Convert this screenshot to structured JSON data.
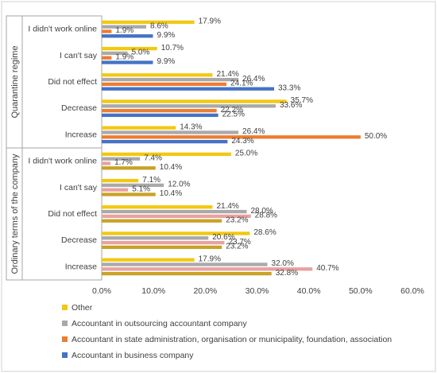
{
  "chart_data": {
    "type": "bar",
    "orientation": "horizontal",
    "groups": [
      {
        "name": "Quarantine regime",
        "categories": [
          {
            "label": "I didn't work online",
            "values": [
              17.9,
              8.6,
              1.9,
              9.9
            ]
          },
          {
            "label": "I can't say",
            "values": [
              10.7,
              5.0,
              1.9,
              9.9
            ]
          },
          {
            "label": "Did not effect",
            "values": [
              21.4,
              26.4,
              24.1,
              33.3
            ]
          },
          {
            "label": "Decrease",
            "values": [
              35.7,
              33.6,
              22.2,
              22.5
            ]
          },
          {
            "label": "Increase",
            "values": [
              14.3,
              26.4,
              50.0,
              24.3
            ]
          }
        ]
      },
      {
        "name": "Ordinary terms of the company",
        "categories": [
          {
            "label": "I didn't work online",
            "values": [
              25.0,
              7.4,
              1.7,
              10.4
            ]
          },
          {
            "label": "I can't say",
            "values": [
              7.1,
              12.0,
              5.1,
              10.4
            ]
          },
          {
            "label": "Did not effect",
            "values": [
              21.4,
              28.0,
              28.8,
              23.2
            ]
          },
          {
            "label": "Decrease",
            "values": [
              28.6,
              20.6,
              23.7,
              23.2
            ]
          },
          {
            "label": "Increase",
            "values": [
              17.9,
              32.0,
              40.7,
              32.8
            ]
          }
        ]
      }
    ],
    "series": [
      {
        "name": "Other",
        "color": "#f2c811"
      },
      {
        "name": "Accountant in outsourcing accountant company",
        "color": "#a9a9a9"
      },
      {
        "name": "Accountant in state administration, organisation or municipality, foundation, association",
        "color": "#ed7d31"
      },
      {
        "name": "Accountant in business company",
        "color": "#4472c4"
      }
    ],
    "group_series_colors": [
      [
        "#f2c811",
        "#a9a9a9",
        "#ed7d31",
        "#4472c4"
      ],
      [
        "#f2c811",
        "#a9a9a9",
        "#e8a2a0",
        "#c9a227",
        "#7a5cc8"
      ]
    ],
    "group_value_color_map": [
      [
        0,
        1,
        2,
        3
      ],
      [
        0,
        1,
        2,
        3
      ]
    ],
    "xaxis": {
      "min": 0,
      "max": 60,
      "ticks": [
        "0.0%",
        "10.0%",
        "20.0%",
        "30.0%",
        "40.0%",
        "50.0%",
        "60.0%"
      ]
    },
    "grid": false,
    "legend_position": "bottom",
    "value_label_format": "percent-1dp"
  }
}
